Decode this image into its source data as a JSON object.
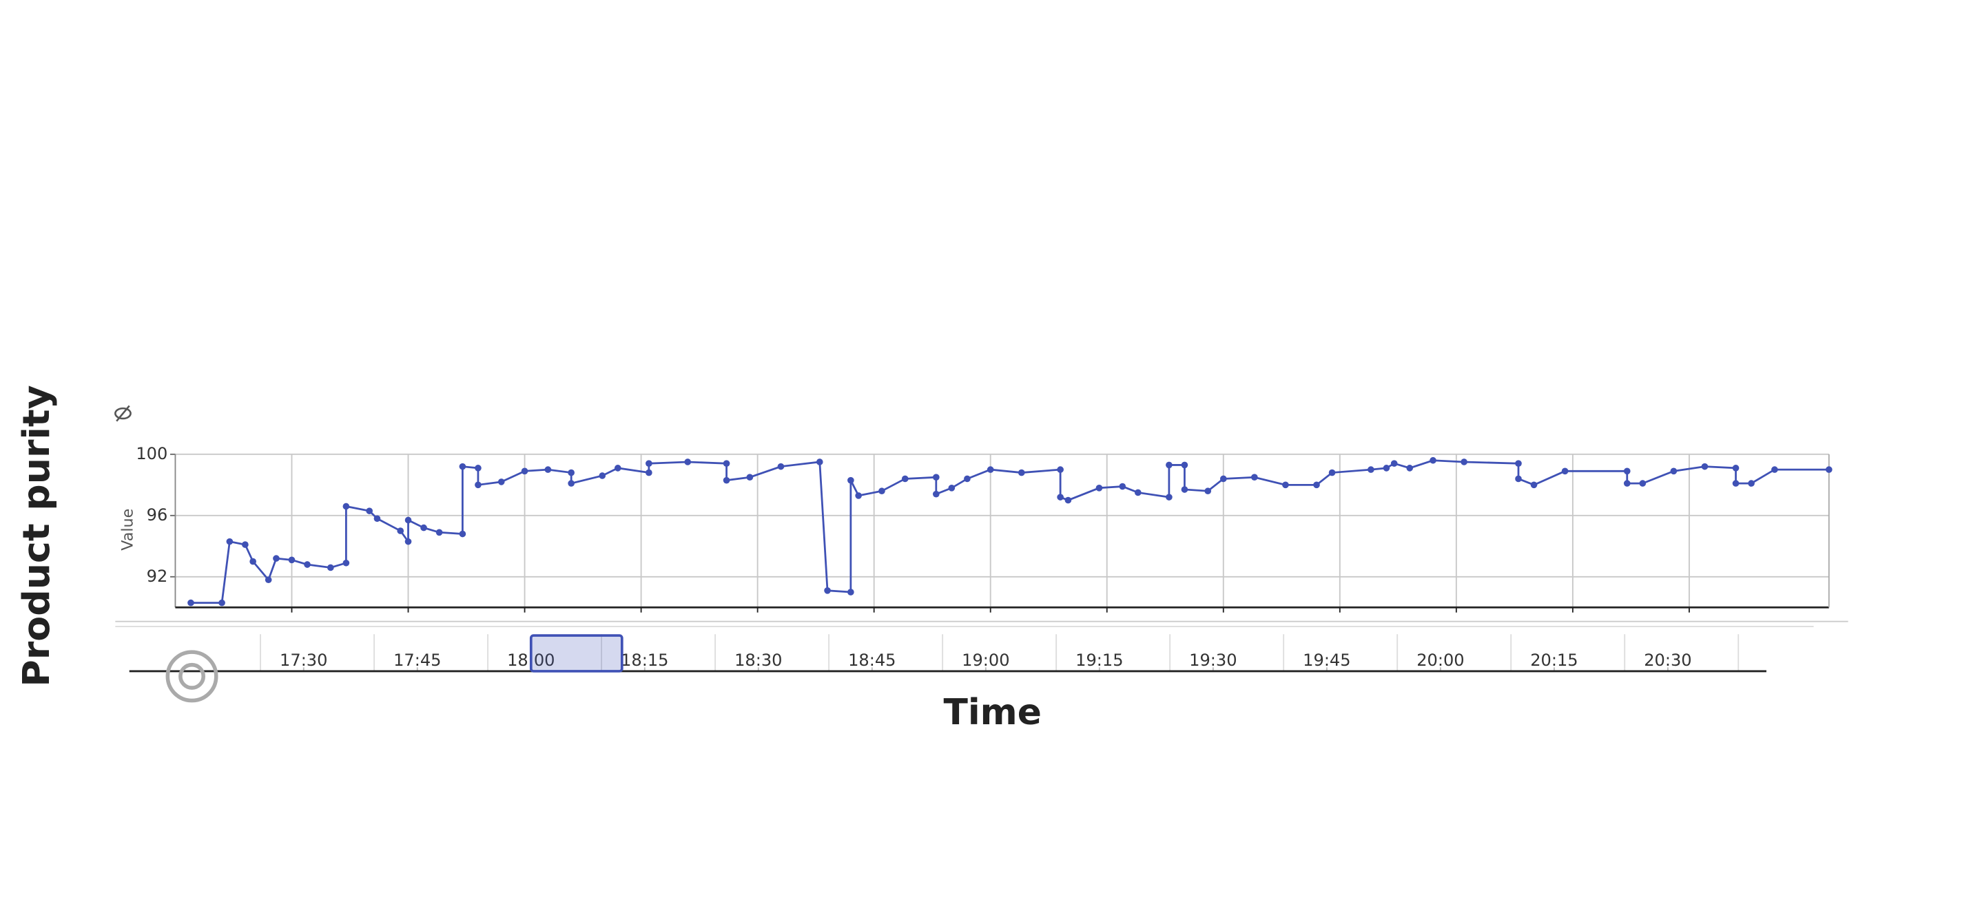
{
  "chart_data": {
    "type": "line",
    "y_title": "Product purity",
    "x_title": "Time",
    "y_axis_label": "Value",
    "x": [
      "17:17",
      "17:21",
      "17:22",
      "17:24",
      "17:25",
      "17:27",
      "17:28",
      "17:30",
      "17:32",
      "17:35",
      "17:37",
      "17:37",
      "17:40",
      "17:41",
      "17:44",
      "17:45",
      "17:45",
      "17:47",
      "17:49",
      "17:52",
      "17:52",
      "17:54",
      "17:54",
      "17:57",
      "18:00",
      "18:03",
      "18:06",
      "18:06",
      "18:10",
      "18:12",
      "18:16",
      "18:16",
      "18:21",
      "18:26",
      "18:26",
      "18:29",
      "18:33",
      "18:38",
      "18:39",
      "18:42",
      "18:42",
      "18:43",
      "18:46",
      "18:49",
      "18:53",
      "18:53",
      "18:55",
      "18:57",
      "19:00",
      "19:04",
      "19:09",
      "19:09",
      "19:10",
      "19:14",
      "19:17",
      "19:19",
      "19:23",
      "19:23",
      "19:25",
      "19:25",
      "19:28",
      "19:30",
      "19:34",
      "19:38",
      "19:42",
      "19:44",
      "19:49",
      "19:51",
      "19:52",
      "19:54",
      "19:57",
      "20:01",
      "20:08",
      "20:08",
      "20:10",
      "20:14",
      "20:22",
      "20:22",
      "20:24",
      "20:28",
      "20:32",
      "20:36",
      "20:36",
      "20:38",
      "20:41",
      "20:48"
    ],
    "series": [
      {
        "color": "#3f51b5",
        "values": [
          90.3,
          90.3,
          94.3,
          94.1,
          93.0,
          91.8,
          93.2,
          93.1,
          92.8,
          92.6,
          92.9,
          96.6,
          96.3,
          95.8,
          95.0,
          94.3,
          95.7,
          95.2,
          94.9,
          94.8,
          99.2,
          99.1,
          98.0,
          98.2,
          98.9,
          99.0,
          98.8,
          98.1,
          98.6,
          99.1,
          98.8,
          99.4,
          99.5,
          99.4,
          98.3,
          98.5,
          99.2,
          99.5,
          91.1,
          91.0,
          98.3,
          97.3,
          97.6,
          98.4,
          98.5,
          97.4,
          97.8,
          98.4,
          99.0,
          98.8,
          99.0,
          97.2,
          97.0,
          97.8,
          97.9,
          97.5,
          97.2,
          99.3,
          99.3,
          97.7,
          97.6,
          98.4,
          98.5,
          98.0,
          98.0,
          98.8,
          99.0,
          99.1,
          99.4,
          99.1,
          99.6,
          99.5,
          99.4,
          98.4,
          98.0,
          98.9,
          98.9,
          98.1,
          98.1,
          98.9,
          99.2,
          99.1,
          98.1,
          98.1,
          99.0,
          99.0
        ]
      }
    ],
    "xlim": [
      "17:15",
      "20:48"
    ],
    "ylim": [
      90,
      100
    ],
    "yticks": [
      92,
      96,
      100
    ],
    "xticks": [
      "17:30",
      "17:45",
      "18:00",
      "18:15",
      "18:30",
      "18:45",
      "19:00",
      "19:15",
      "19:30",
      "19:45",
      "20:00",
      "20:15",
      "20:30"
    ],
    "navigator_xlim": [
      "17:07",
      "20:43"
    ],
    "navigator_selection": [
      "18:00",
      "18:12"
    ],
    "grid": true
  }
}
